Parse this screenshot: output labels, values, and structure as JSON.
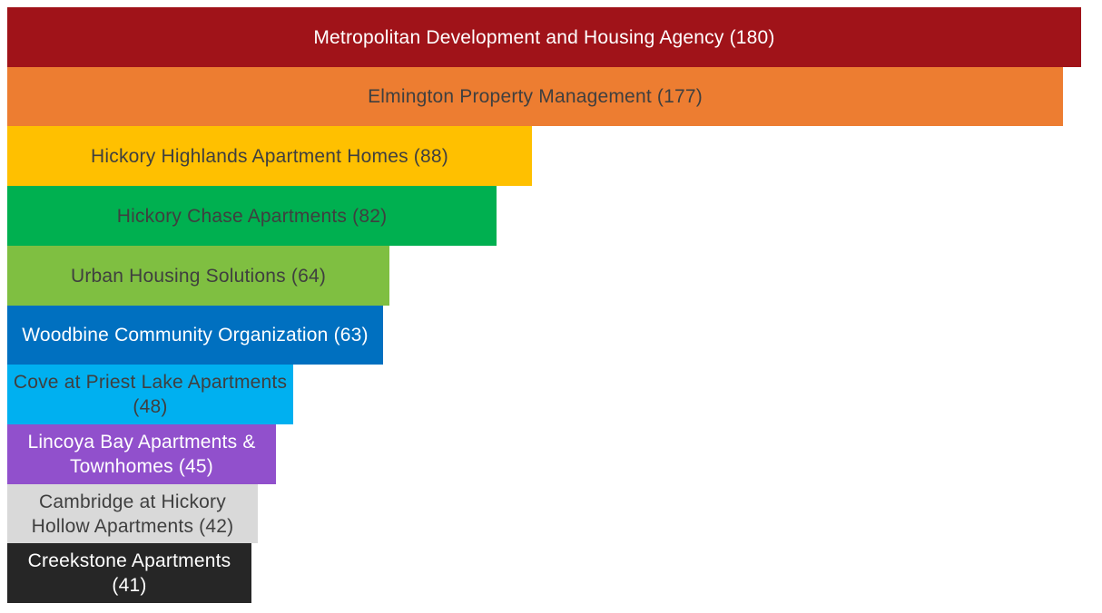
{
  "chart_data": {
    "type": "bar",
    "orientation": "horizontal",
    "title": "",
    "xlabel": "",
    "ylabel": "",
    "xlim": [
      0,
      180
    ],
    "grid": false,
    "legend": "none",
    "categories": [
      "Metropolitan Development and Housing Agency",
      "Elmington Property Management",
      "Hickory Highlands Apartment Homes",
      "Hickory Chase Apartments",
      "Urban Housing Solutions",
      "Woodbine Community Organization",
      "Cove at Priest Lake Apartments",
      "Lincoya Bay Apartments & Townhomes",
      "Cambridge at Hickory Hollow Apartments",
      "Creekstone Apartments"
    ],
    "values": [
      180,
      177,
      88,
      82,
      64,
      63,
      48,
      45,
      42,
      41
    ],
    "labels": [
      "Metropolitan Development and Housing Agency (180)",
      "Elmington Property Management (177)",
      "Hickory Highlands Apartment Homes (88)",
      "Hickory Chase Apartments (82)",
      "Urban Housing Solutions (64)",
      "Woodbine Community Organization (63)",
      "Cove at Priest Lake Apartments (48)",
      "Lincoya Bay Apartments & Townhomes (45)",
      "Cambridge at Hickory Hollow Apartments (42)",
      "Creekstone Apartments (41)"
    ],
    "colors": [
      "#A01319",
      "#ED7D31",
      "#FFC000",
      "#00B050",
      "#7FBF41",
      "#0070C0",
      "#00B0F0",
      "#9150CC",
      "#D9D9D9",
      "#262626"
    ],
    "label_colors": [
      "#FFFFFF",
      "#3F3F3F",
      "#3F3F3F",
      "#3F3F3F",
      "#3F3F3F",
      "#FFFFFF",
      "#3F3F3F",
      "#FFFFFF",
      "#3F3F3F",
      "#FFFFFF"
    ]
  }
}
